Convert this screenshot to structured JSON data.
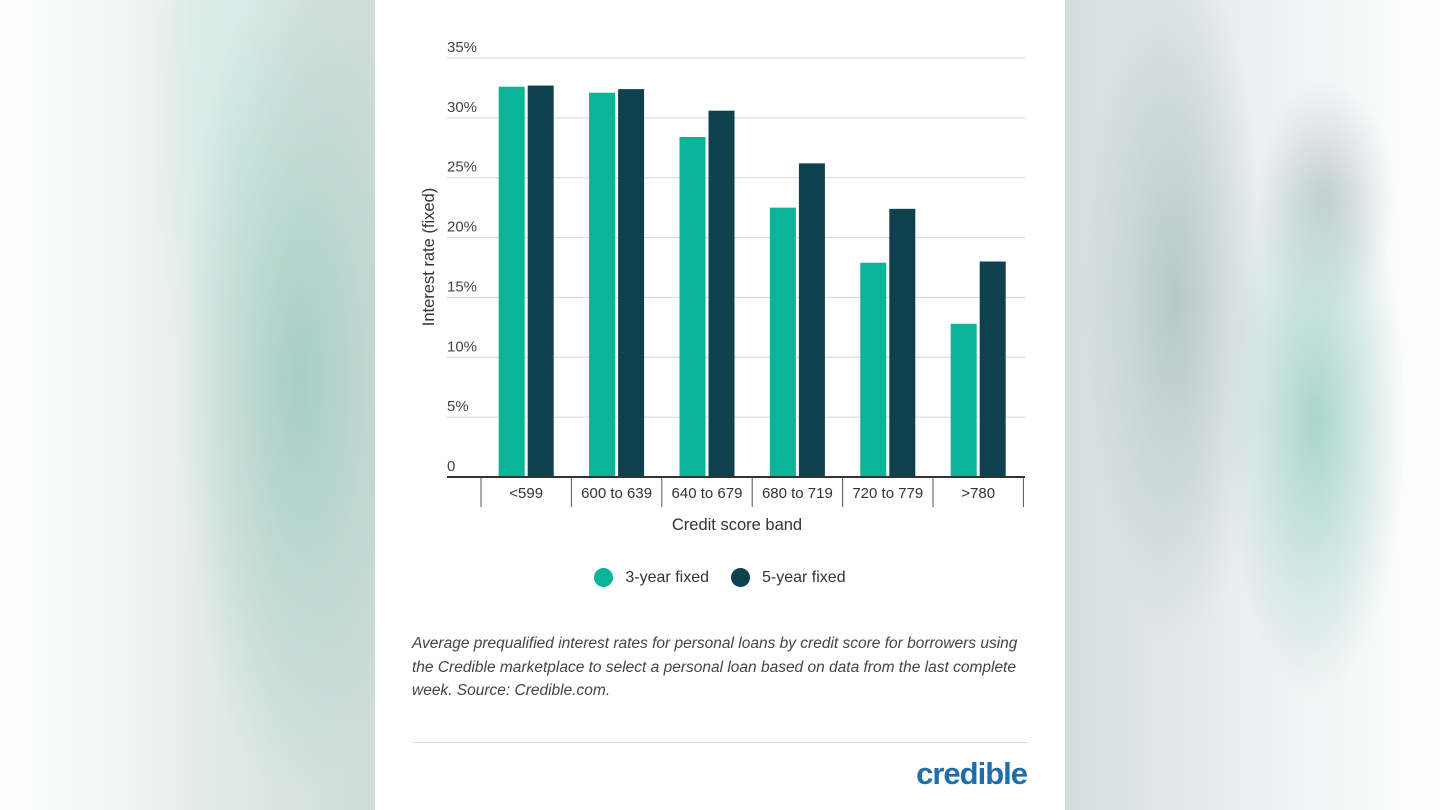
{
  "chart_data": {
    "type": "bar",
    "title": "",
    "xlabel": "Credit score band",
    "ylabel": "Interest rate (fixed)",
    "ylim": [
      0,
      35
    ],
    "yticks": [
      "0",
      "5%",
      "10%",
      "15%",
      "20%",
      "25%",
      "30%",
      "35%"
    ],
    "ytick_values": [
      0,
      5,
      10,
      15,
      20,
      25,
      30,
      35
    ],
    "categories": [
      "<599",
      "600 to 639",
      "640 to 679",
      "680 to 719",
      "720 to 779",
      ">780"
    ],
    "series": [
      {
        "name": "3-year fixed",
        "color": "#0ab496",
        "values": [
          32.6,
          32.1,
          28.4,
          22.5,
          17.9,
          12.8
        ]
      },
      {
        "name": "5-year fixed",
        "color": "#0f404e",
        "values": [
          32.7,
          32.4,
          30.6,
          26.2,
          22.4,
          18.0
        ]
      }
    ],
    "grid": true,
    "legend": "bottom-center"
  },
  "caption": "Average prequalified interest rates for personal loans by credit score for borrowers using the Credible marketplace to select a personal loan based on data from the last complete week. Source: Credible.com.",
  "logo": "credible"
}
